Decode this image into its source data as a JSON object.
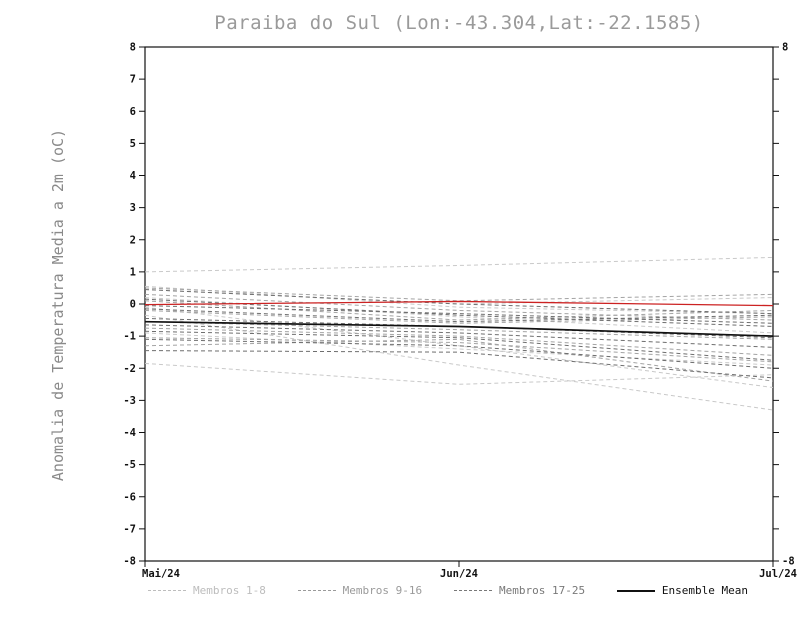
{
  "chart_data": {
    "type": "line",
    "title": "Paraiba do Sul (Lon:-43.304,Lat:-22.1585)",
    "ylabel": "Anomalia de Temperatura Media a 2m (oC)",
    "xlabel": "",
    "ylim": [
      -8,
      8
    ],
    "y_step": 1,
    "x_ticklabels": [
      "Mai/24",
      "Jun/24",
      "Jul/24"
    ],
    "grid": false,
    "legend_position": "bottom",
    "groups": [
      {
        "name": "Membros 1-8",
        "color": "#c9c9c9",
        "members": [
          [
            1.0,
            1.2,
            1.45
          ],
          [
            0.55,
            -0.1,
            -0.3
          ],
          [
            0.45,
            0.0,
            0.2
          ],
          [
            -0.1,
            -1.3,
            -2.6
          ],
          [
            -0.35,
            -1.9,
            -3.3
          ],
          [
            -1.85,
            -2.5,
            -2.2
          ],
          [
            0.2,
            -0.4,
            -0.9
          ],
          [
            -0.9,
            -1.4,
            -1.9
          ]
        ]
      },
      {
        "name": "Membros 9-16",
        "color": "#a3a3a3",
        "members": [
          [
            0.5,
            0.1,
            0.3
          ],
          [
            0.3,
            -0.2,
            -0.5
          ],
          [
            -0.2,
            -0.6,
            -0.4
          ],
          [
            -0.55,
            -0.8,
            -1.1
          ],
          [
            -0.75,
            -1.0,
            -1.6
          ],
          [
            -1.05,
            -1.2,
            -1.8
          ],
          [
            -1.3,
            -1.1,
            -2.4
          ],
          [
            0.1,
            -0.5,
            -0.2
          ]
        ]
      },
      {
        "name": "Membros 17-25",
        "color": "#6e6e6e",
        "members": [
          [
            0.45,
            0.0,
            -0.3
          ],
          [
            0.15,
            -0.35,
            -0.7
          ],
          [
            -0.15,
            -0.55,
            -0.35
          ],
          [
            -0.45,
            -0.7,
            -1.05
          ],
          [
            -0.65,
            -0.9,
            -1.35
          ],
          [
            -0.85,
            -1.05,
            -1.75
          ],
          [
            -1.1,
            -1.3,
            -2.0
          ],
          [
            -1.45,
            -1.5,
            -2.3
          ],
          [
            -0.05,
            -0.3,
            -0.6
          ]
        ]
      }
    ],
    "special_series": [
      {
        "name": "highlight-member",
        "color": "#cc2222",
        "width": 1.3,
        "values": [
          -0.02,
          0.08,
          -0.05
        ]
      },
      {
        "name": "Ensemble Mean",
        "color": "#111111",
        "width": 1.7,
        "values": [
          -0.55,
          -0.7,
          -1.0
        ]
      }
    ],
    "legend": [
      {
        "label": "Membros 1-8",
        "color": "#bdbdbd",
        "style": "dashed"
      },
      {
        "label": "Membros 9-16",
        "color": "#9a9a9a",
        "style": "dashed"
      },
      {
        "label": "Membros 17-25",
        "color": "#787878",
        "style": "dashed"
      },
      {
        "label": "Ensemble Mean",
        "color": "#111111",
        "style": "solid"
      }
    ]
  }
}
